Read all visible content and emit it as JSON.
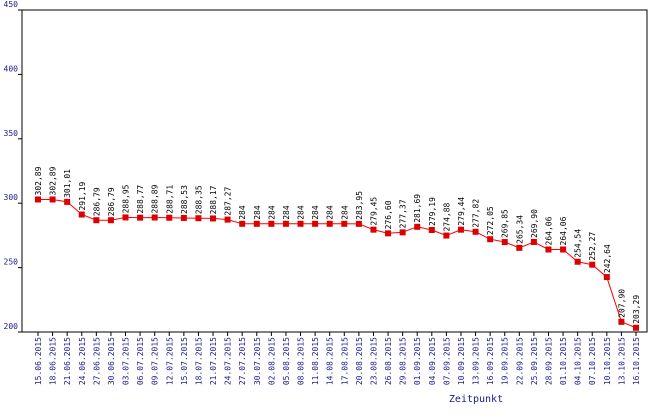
{
  "chart_data": {
    "type": "line",
    "xlabel": "Zeitpunkt",
    "ylabel": "",
    "ylim": [
      200,
      450
    ],
    "yticks": [
      200,
      250,
      300,
      350,
      400,
      450
    ],
    "grid": false,
    "series_color": "#ff0000",
    "marker_color": "#dd0000",
    "axis_label_color": "#1a1a8c",
    "x": [
      "15.06.2015",
      "18.06.2015",
      "21.06.2015",
      "24.06.2015",
      "27.06.2015",
      "30.06.2015",
      "03.07.2015",
      "06.07.2015",
      "09.07.2015",
      "12.07.2015",
      "15.07.2015",
      "18.07.2015",
      "21.07.2015",
      "24.07.2015",
      "27.07.2015",
      "30.07.2015",
      "02.08.2015",
      "05.08.2015",
      "08.08.2015",
      "11.08.2015",
      "14.08.2015",
      "17.08.2015",
      "20.08.2015",
      "23.08.2015",
      "26.08.2015",
      "29.08.2015",
      "01.09.2015",
      "04.09.2015",
      "07.09.2015",
      "10.09.2015",
      "13.09.2015",
      "16.09.2015",
      "19.09.2015",
      "22.09.2015",
      "25.09.2015",
      "28.09.2015",
      "01.10.2015",
      "04.10.2015",
      "07.10.2015",
      "10.10.2015",
      "13.10.2015",
      "16.10.2015"
    ],
    "values": [
      302.89,
      302.89,
      301.01,
      291.19,
      286.79,
      286.79,
      288.95,
      288.77,
      288.89,
      288.71,
      288.53,
      288.35,
      288.17,
      287.27,
      284,
      284,
      284,
      284,
      284,
      284,
      284,
      284,
      283.95,
      279.45,
      276.6,
      277.37,
      281.69,
      279.19,
      274.88,
      279.44,
      277.82,
      272.05,
      269.85,
      265.34,
      269.9,
      264.06,
      264.06,
      254.54,
      252.27,
      242.64,
      207.9,
      203.29
    ],
    "data_labels": [
      "302,89",
      "302,89",
      "301,01",
      "291,19",
      "286,79",
      "286,79",
      "288,95",
      "288,77",
      "288,89",
      "288,71",
      "288,53",
      "288,35",
      "288,17",
      "287,27",
      "284",
      "284",
      "284",
      "284",
      "284",
      "284",
      "284",
      "284",
      "283,95",
      "279,45",
      "276,60",
      "277,37",
      "281,69",
      "279,19",
      "274,88",
      "279,44",
      "277,82",
      "272,05",
      "269,85",
      "265,34",
      "269,90",
      "264,06",
      "264,06",
      "254,54",
      "252,27",
      "242,64",
      "207,90",
      "203,29"
    ]
  }
}
